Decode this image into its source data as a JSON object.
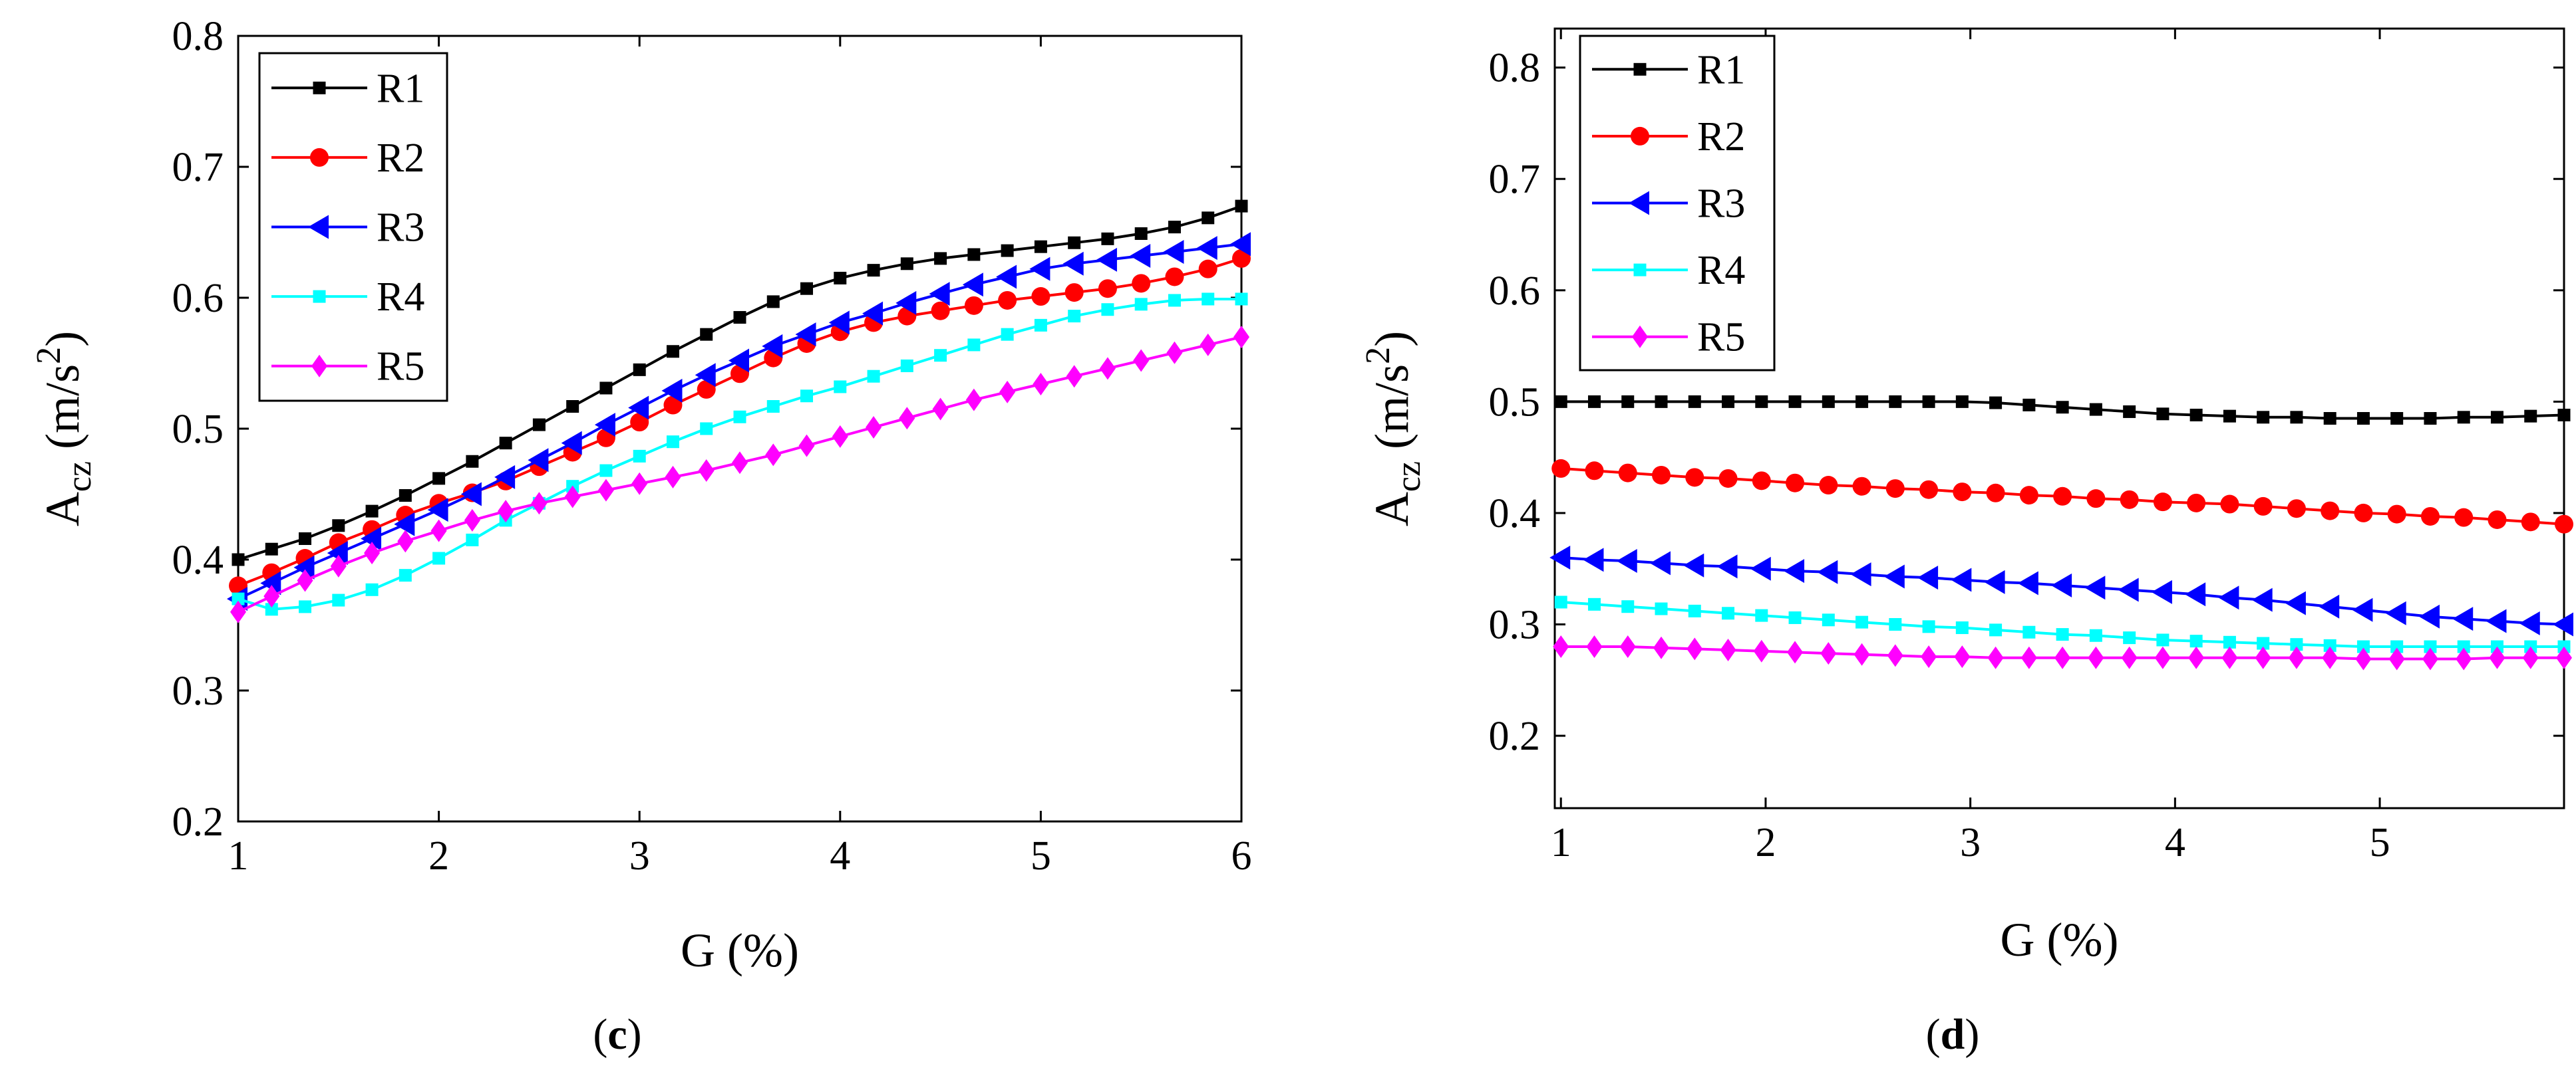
{
  "chart_data": [
    {
      "type": "line",
      "panel_label": "c",
      "xlabel": "G (%)",
      "ylabel": "A",
      "ylabel_subscript": "cz",
      "ylabel_units": " (m/s",
      "ylabel_units_sup": "2",
      "ylabel_units_close": ")",
      "xlim": [
        1,
        6
      ],
      "ylim": [
        0.2,
        0.8
      ],
      "xticks": [
        1,
        2,
        3,
        4,
        5,
        6
      ],
      "yticks": [
        0.2,
        0.3,
        0.4,
        0.5,
        0.6,
        0.7,
        0.8
      ],
      "xtick_labels": [
        "1",
        "2",
        "3",
        "4",
        "5",
        "6"
      ],
      "ytick_labels": [
        "0.2",
        "0.3",
        "0.4",
        "0.5",
        "0.6",
        "0.7",
        "0.8"
      ],
      "legend_position": "top-left",
      "grid": false,
      "x": [
        1.0,
        1.1667,
        1.3333,
        1.5,
        1.6667,
        1.8333,
        2.0,
        2.1667,
        2.3333,
        2.5,
        2.6667,
        2.8333,
        3.0,
        3.1667,
        3.3333,
        3.5,
        3.6667,
        3.8333,
        4.0,
        4.1667,
        4.3333,
        4.5,
        4.6667,
        4.8333,
        5.0,
        5.1667,
        5.3333,
        5.5,
        5.6667,
        5.8333,
        6.0
      ],
      "series": [
        {
          "name": "R1",
          "color": "#000000",
          "marker": "square",
          "values": [
            0.4,
            0.408,
            0.416,
            0.426,
            0.437,
            0.449,
            0.462,
            0.475,
            0.489,
            0.503,
            0.517,
            0.531,
            0.545,
            0.559,
            0.572,
            0.585,
            0.597,
            0.607,
            0.615,
            0.621,
            0.626,
            0.63,
            0.633,
            0.636,
            0.639,
            0.642,
            0.645,
            0.649,
            0.654,
            0.661,
            0.67
          ]
        },
        {
          "name": "R2",
          "color": "#ff0000",
          "marker": "circle",
          "values": [
            0.38,
            0.39,
            0.401,
            0.413,
            0.423,
            0.434,
            0.443,
            0.451,
            0.46,
            0.471,
            0.482,
            0.493,
            0.505,
            0.518,
            0.53,
            0.542,
            0.554,
            0.565,
            0.574,
            0.581,
            0.586,
            0.59,
            0.594,
            0.598,
            0.601,
            0.604,
            0.607,
            0.611,
            0.616,
            0.622,
            0.63
          ]
        },
        {
          "name": "R3",
          "color": "#0000ff",
          "marker": "triangle-left",
          "values": [
            0.37,
            0.382,
            0.394,
            0.405,
            0.416,
            0.427,
            0.438,
            0.45,
            0.463,
            0.476,
            0.489,
            0.503,
            0.516,
            0.529,
            0.541,
            0.552,
            0.563,
            0.572,
            0.581,
            0.588,
            0.596,
            0.603,
            0.61,
            0.616,
            0.622,
            0.626,
            0.629,
            0.632,
            0.635,
            0.638,
            0.641
          ]
        },
        {
          "name": "R4",
          "color": "#00ffff",
          "marker": "square",
          "values": [
            0.37,
            0.362,
            0.364,
            0.369,
            0.377,
            0.388,
            0.401,
            0.415,
            0.43,
            0.443,
            0.456,
            0.468,
            0.479,
            0.49,
            0.5,
            0.509,
            0.517,
            0.525,
            0.532,
            0.54,
            0.548,
            0.556,
            0.564,
            0.572,
            0.579,
            0.586,
            0.591,
            0.595,
            0.598,
            0.599,
            0.599
          ]
        },
        {
          "name": "R5",
          "color": "#ff00ff",
          "marker": "diamond",
          "values": [
            0.36,
            0.372,
            0.384,
            0.395,
            0.405,
            0.414,
            0.422,
            0.43,
            0.437,
            0.443,
            0.448,
            0.453,
            0.458,
            0.463,
            0.468,
            0.474,
            0.48,
            0.487,
            0.494,
            0.501,
            0.508,
            0.515,
            0.522,
            0.528,
            0.534,
            0.54,
            0.546,
            0.552,
            0.558,
            0.564,
            0.57
          ]
        }
      ]
    },
    {
      "type": "line",
      "panel_label": "d",
      "xlabel": "G (%)",
      "ylabel": "A",
      "ylabel_subscript": "cz",
      "ylabel_units": " (m/s",
      "ylabel_units_sup": "2",
      "ylabel_units_close": ")",
      "xlim": [
        0.97,
        5.9
      ],
      "ylim": [
        0.135,
        0.835
      ],
      "xticks": [
        1,
        2,
        3,
        4,
        5
      ],
      "yticks": [
        0.2,
        0.3,
        0.4,
        0.5,
        0.6,
        0.7,
        0.8
      ],
      "xtick_labels": [
        "1",
        "2",
        "3",
        "4",
        "5"
      ],
      "ytick_labels": [
        "0.2",
        "0.3",
        "0.4",
        "0.5",
        "0.6",
        "0.7",
        "0.8"
      ],
      "legend_position": "top-left",
      "grid": false,
      "x": [
        1.0,
        1.1633,
        1.3267,
        1.49,
        1.6533,
        1.8167,
        1.98,
        2.1433,
        2.3067,
        2.47,
        2.6333,
        2.7967,
        2.96,
        3.1233,
        3.2867,
        3.45,
        3.6133,
        3.7767,
        3.94,
        4.1033,
        4.2667,
        4.43,
        4.5933,
        4.7567,
        4.92,
        5.0833,
        5.2467,
        5.41,
        5.5733,
        5.7367,
        5.9
      ],
      "series": [
        {
          "name": "R1",
          "color": "#000000",
          "marker": "square",
          "values": [
            0.5,
            0.5,
            0.5,
            0.5,
            0.5,
            0.5,
            0.5,
            0.5,
            0.5,
            0.5,
            0.5,
            0.5,
            0.5,
            0.499,
            0.497,
            0.495,
            0.493,
            0.491,
            0.489,
            0.488,
            0.487,
            0.486,
            0.486,
            0.485,
            0.485,
            0.485,
            0.485,
            0.486,
            0.486,
            0.487,
            0.488
          ]
        },
        {
          "name": "R2",
          "color": "#ff0000",
          "marker": "circle",
          "values": [
            0.44,
            0.438,
            0.436,
            0.434,
            0.432,
            0.431,
            0.429,
            0.427,
            0.425,
            0.424,
            0.422,
            0.421,
            0.419,
            0.418,
            0.416,
            0.415,
            0.413,
            0.412,
            0.41,
            0.409,
            0.408,
            0.406,
            0.404,
            0.402,
            0.4,
            0.399,
            0.397,
            0.396,
            0.394,
            0.392,
            0.39
          ]
        },
        {
          "name": "R3",
          "color": "#0000ff",
          "marker": "triangle-left",
          "values": [
            0.36,
            0.358,
            0.357,
            0.355,
            0.353,
            0.352,
            0.35,
            0.348,
            0.347,
            0.345,
            0.343,
            0.342,
            0.34,
            0.338,
            0.337,
            0.335,
            0.333,
            0.331,
            0.329,
            0.327,
            0.324,
            0.322,
            0.319,
            0.316,
            0.313,
            0.31,
            0.307,
            0.305,
            0.303,
            0.301,
            0.3
          ]
        },
        {
          "name": "R4",
          "color": "#00ffff",
          "marker": "square",
          "values": [
            0.32,
            0.318,
            0.316,
            0.314,
            0.312,
            0.31,
            0.308,
            0.306,
            0.304,
            0.302,
            0.3,
            0.298,
            0.297,
            0.295,
            0.293,
            0.291,
            0.29,
            0.288,
            0.286,
            0.285,
            0.284,
            0.283,
            0.282,
            0.281,
            0.28,
            0.28,
            0.28,
            0.28,
            0.28,
            0.28,
            0.28
          ]
        },
        {
          "name": "R5",
          "color": "#ff00ff",
          "marker": "diamond",
          "values": [
            0.28,
            0.28,
            0.28,
            0.279,
            0.278,
            0.277,
            0.276,
            0.275,
            0.274,
            0.273,
            0.272,
            0.271,
            0.271,
            0.27,
            0.27,
            0.27,
            0.27,
            0.27,
            0.27,
            0.27,
            0.27,
            0.27,
            0.27,
            0.27,
            0.269,
            0.269,
            0.269,
            0.269,
            0.27,
            0.27,
            0.27
          ]
        }
      ]
    }
  ]
}
